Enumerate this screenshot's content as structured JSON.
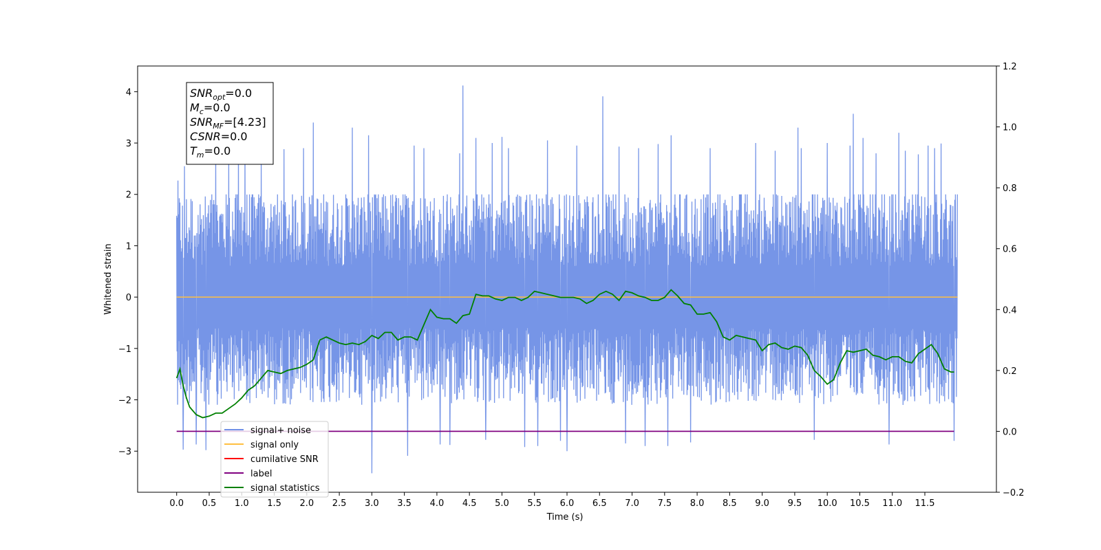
{
  "chart_data": {
    "type": "line",
    "xlabel": "Time (s)",
    "ylabel": "Whitened strain",
    "xlim": [
      -0.6,
      12.6
    ],
    "ylim": [
      -3.8,
      4.5
    ],
    "ylim_right": [
      -0.2,
      1.2
    ],
    "x_ticks": [
      0.0,
      0.5,
      1.0,
      1.5,
      2.0,
      2.5,
      3.0,
      3.5,
      4.0,
      4.5,
      5.0,
      5.5,
      6.0,
      6.5,
      7.0,
      7.5,
      8.0,
      8.5,
      9.0,
      9.5,
      10.0,
      10.5,
      11.0,
      11.5
    ],
    "x_tick_labels": [
      "0.0",
      "0.5",
      "1.0",
      "1.5",
      "2.0",
      "2.5",
      "3.0",
      "3.5",
      "4.0",
      "4.5",
      "5.0",
      "5.5",
      "6.0",
      "6.5",
      "7.0",
      "7.5",
      "8.0",
      "8.5",
      "9.0",
      "9.5",
      "10.0",
      "10.5",
      "11.0",
      "11.5"
    ],
    "y_ticks": [
      -3,
      -2,
      -1,
      0,
      1,
      2,
      3,
      4
    ],
    "y_tick_labels": [
      "−3",
      "−2",
      "−1",
      "0",
      "1",
      "2",
      "3",
      "4"
    ],
    "y_ticks_right": [
      -0.2,
      0.0,
      0.2,
      0.4,
      0.6,
      0.8,
      1.0,
      1.2
    ],
    "y_tick_labels_right": [
      "−0.2",
      "0.0",
      "0.2",
      "0.4",
      "0.6",
      "0.8",
      "1.0",
      "1.2"
    ],
    "grid": false,
    "legend_position": "lower-left",
    "series": [
      {
        "name": "signal+ noise",
        "color": "#6f8fe6",
        "axis": "left",
        "x_range": [
          0.0,
          12.0
        ],
        "band_lower": -2.1,
        "band_upper": 2.0,
        "spikes": [
          [
            0.02,
            2.27
          ],
          [
            0.1,
            -2.97
          ],
          [
            0.12,
            2.55
          ],
          [
            0.3,
            -2.87
          ],
          [
            0.45,
            -2.98
          ],
          [
            0.6,
            2.9
          ],
          [
            0.8,
            2.7
          ],
          [
            0.95,
            2.98
          ],
          [
            1.05,
            3.05
          ],
          [
            1.3,
            2.7
          ],
          [
            1.65,
            2.88
          ],
          [
            1.95,
            2.9
          ],
          [
            2.1,
            3.4
          ],
          [
            2.7,
            3.3
          ],
          [
            2.95,
            3.15
          ],
          [
            3.0,
            -3.43
          ],
          [
            3.55,
            -3.09
          ],
          [
            3.65,
            2.95
          ],
          [
            3.8,
            2.9
          ],
          [
            4.05,
            -2.87
          ],
          [
            4.2,
            -2.88
          ],
          [
            4.35,
            2.8
          ],
          [
            4.4,
            4.12
          ],
          [
            4.6,
            3.1
          ],
          [
            4.75,
            -2.78
          ],
          [
            4.85,
            3.0
          ],
          [
            5.0,
            3.12
          ],
          [
            5.1,
            2.9
          ],
          [
            5.35,
            -2.92
          ],
          [
            5.55,
            -2.9
          ],
          [
            5.7,
            3.05
          ],
          [
            5.9,
            -2.8
          ],
          [
            6.0,
            -3.0
          ],
          [
            6.15,
            2.95
          ],
          [
            6.55,
            3.91
          ],
          [
            6.8,
            2.93
          ],
          [
            6.9,
            -2.85
          ],
          [
            7.1,
            2.9
          ],
          [
            7.2,
            -2.9
          ],
          [
            7.4,
            2.98
          ],
          [
            7.55,
            -2.9
          ],
          [
            7.6,
            3.15
          ],
          [
            7.9,
            -2.83
          ],
          [
            8.2,
            2.9
          ],
          [
            8.9,
            3.0
          ],
          [
            9.2,
            2.85
          ],
          [
            9.55,
            3.3
          ],
          [
            9.6,
            2.9
          ],
          [
            9.8,
            -2.78
          ],
          [
            10.0,
            3.0
          ],
          [
            10.35,
            2.95
          ],
          [
            10.4,
            3.57
          ],
          [
            10.55,
            3.1
          ],
          [
            10.75,
            2.8
          ],
          [
            10.95,
            -2.87
          ],
          [
            11.1,
            3.2
          ],
          [
            11.2,
            2.85
          ],
          [
            11.4,
            2.78
          ],
          [
            11.55,
            2.95
          ],
          [
            11.65,
            2.9
          ],
          [
            11.75,
            2.99
          ],
          [
            11.95,
            -2.8
          ]
        ]
      },
      {
        "name": "signal only",
        "color": "#ffbf40",
        "axis": "left",
        "x": [
          0.0,
          12.0
        ],
        "y": [
          0.0,
          0.0
        ]
      },
      {
        "name": "cumilative SNR",
        "color": "#ff0000",
        "axis": "left",
        "x": [],
        "y": []
      },
      {
        "name": "label",
        "color": "#800080",
        "axis": "right",
        "x": [
          0.0,
          11.95
        ],
        "y": [
          0.0,
          0.0
        ]
      },
      {
        "name": "signal statistics",
        "color": "#008000",
        "axis": "right",
        "x": [
          0.0,
          0.05,
          0.1,
          0.15,
          0.2,
          0.3,
          0.4,
          0.5,
          0.6,
          0.7,
          0.8,
          0.9,
          1.0,
          1.1,
          1.2,
          1.3,
          1.4,
          1.5,
          1.6,
          1.7,
          1.8,
          1.9,
          2.0,
          2.1,
          2.2,
          2.3,
          2.4,
          2.5,
          2.6,
          2.7,
          2.8,
          2.9,
          3.0,
          3.1,
          3.2,
          3.3,
          3.4,
          3.5,
          3.6,
          3.7,
          3.8,
          3.9,
          4.0,
          4.1,
          4.2,
          4.3,
          4.4,
          4.5,
          4.6,
          4.7,
          4.8,
          4.9,
          5.0,
          5.1,
          5.2,
          5.3,
          5.4,
          5.5,
          5.6,
          5.7,
          5.8,
          5.9,
          6.0,
          6.1,
          6.2,
          6.3,
          6.4,
          6.5,
          6.6,
          6.7,
          6.8,
          6.9,
          7.0,
          7.1,
          7.2,
          7.3,
          7.4,
          7.5,
          7.6,
          7.7,
          7.8,
          7.9,
          8.0,
          8.1,
          8.2,
          8.3,
          8.4,
          8.5,
          8.6,
          8.7,
          8.8,
          8.9,
          9.0,
          9.1,
          9.2,
          9.3,
          9.4,
          9.5,
          9.6,
          9.7,
          9.8,
          9.9,
          10.0,
          10.1,
          10.2,
          10.3,
          10.4,
          10.5,
          10.6,
          10.7,
          10.8,
          10.9,
          11.0,
          11.1,
          11.2,
          11.3,
          11.4,
          11.5,
          11.6,
          11.7,
          11.8,
          11.9,
          11.95
        ],
        "y": [
          0.175,
          0.205,
          0.15,
          0.11,
          0.08,
          0.055,
          0.045,
          0.05,
          0.06,
          0.06,
          0.075,
          0.09,
          0.11,
          0.135,
          0.15,
          0.175,
          0.2,
          0.195,
          0.19,
          0.2,
          0.205,
          0.21,
          0.22,
          0.235,
          0.3,
          0.31,
          0.3,
          0.29,
          0.285,
          0.29,
          0.285,
          0.295,
          0.315,
          0.305,
          0.325,
          0.325,
          0.3,
          0.31,
          0.31,
          0.3,
          0.35,
          0.4,
          0.375,
          0.37,
          0.37,
          0.355,
          0.38,
          0.385,
          0.45,
          0.445,
          0.445,
          0.435,
          0.43,
          0.44,
          0.44,
          0.43,
          0.44,
          0.46,
          0.455,
          0.45,
          0.445,
          0.44,
          0.44,
          0.44,
          0.435,
          0.42,
          0.43,
          0.45,
          0.46,
          0.45,
          0.43,
          0.46,
          0.455,
          0.445,
          0.44,
          0.43,
          0.43,
          0.44,
          0.465,
          0.445,
          0.42,
          0.415,
          0.385,
          0.385,
          0.39,
          0.36,
          0.31,
          0.3,
          0.315,
          0.31,
          0.305,
          0.3,
          0.265,
          0.285,
          0.29,
          0.275,
          0.27,
          0.28,
          0.275,
          0.25,
          0.2,
          0.18,
          0.155,
          0.17,
          0.225,
          0.265,
          0.26,
          0.265,
          0.27,
          0.25,
          0.245,
          0.235,
          0.245,
          0.245,
          0.23,
          0.225,
          0.255,
          0.27,
          0.285,
          0.255,
          0.205,
          0.195,
          0.195
        ]
      }
    ],
    "annotation": {
      "lines": [
        {
          "base": "SNR",
          "sub": "opt",
          "value": "=0.0"
        },
        {
          "base": "M",
          "sub": "c",
          "value": "=0.0"
        },
        {
          "base": "SNR",
          "sub": "MF",
          "value": "=[4.23]"
        },
        {
          "base": "CSNR",
          "sub": "",
          "value": "=0.0"
        },
        {
          "base": "T",
          "sub": "m",
          "value": "=0.0"
        }
      ]
    }
  }
}
